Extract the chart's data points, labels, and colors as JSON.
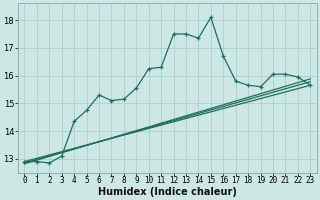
{
  "title": "",
  "xlabel": "Humidex (Indice chaleur)",
  "bg_color": "#cde8e4",
  "grid_color": "#aacfca",
  "line_color": "#1e6e62",
  "xlim": [
    -0.5,
    23.5
  ],
  "ylim": [
    12.5,
    18.6
  ],
  "xticks": [
    0,
    1,
    2,
    3,
    4,
    5,
    6,
    7,
    8,
    9,
    10,
    11,
    12,
    13,
    14,
    15,
    16,
    17,
    18,
    19,
    20,
    21,
    22,
    23
  ],
  "yticks": [
    13,
    14,
    15,
    16,
    17,
    18
  ],
  "line1_x": [
    0,
    1,
    2,
    3,
    4,
    5,
    6,
    7,
    8,
    9,
    10,
    11,
    12,
    13,
    14,
    15,
    16,
    17,
    18,
    19,
    20,
    21,
    22,
    23
  ],
  "line1_y": [
    12.9,
    12.9,
    12.85,
    13.1,
    14.35,
    14.75,
    15.3,
    15.1,
    15.15,
    15.55,
    16.25,
    16.3,
    17.5,
    17.5,
    17.35,
    18.1,
    16.7,
    15.8,
    15.65,
    15.6,
    16.05,
    16.05,
    15.95,
    15.65
  ],
  "line2_x": [
    0,
    23
  ],
  "line2_y": [
    12.9,
    15.65
  ],
  "line3_x": [
    0,
    23
  ],
  "line3_y": [
    12.85,
    15.78
  ],
  "line4_x": [
    0,
    23
  ],
  "line4_y": [
    12.82,
    15.88
  ],
  "xlabel_fontsize": 7,
  "tick_fontsize": 5.5,
  "ytick_fontsize": 6
}
